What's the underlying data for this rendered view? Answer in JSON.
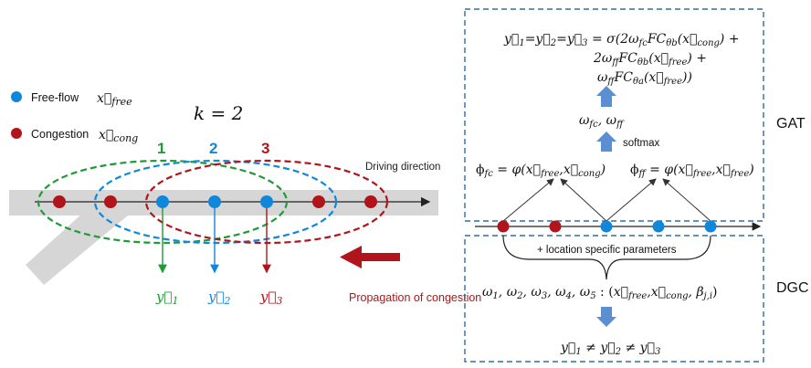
{
  "legend": {
    "free_flow_label": "Free-flow",
    "free_flow_symbol": "x⃗free",
    "congestion_label": "Congestion",
    "congestion_symbol": "x⃗cong",
    "free_color": "#1187db",
    "cong_color": "#b2141b"
  },
  "k_label": "k = 2",
  "hop_labels": [
    "1",
    "2",
    "3"
  ],
  "hop_colors": [
    "#1e9a36",
    "#1187db",
    "#b2141b"
  ],
  "driving_direction": "Driving direction",
  "outputs": [
    "y⃗₁",
    "y⃗₂",
    "y⃗₃"
  ],
  "propagation_label": "Propagation of congestion",
  "gat": {
    "label": "GAT",
    "formula_line1": "y⃗₁=y⃗₂=y⃗₃ = σ(2ωfcFCθb(x⃗cong) +",
    "formula_line2": "2ωffFCθb(x⃗free) +",
    "formula_line3": "ωffFCθa(x⃗free))",
    "weights": "ωfc, ωff",
    "softmax": "softmax",
    "phi_fc": "ϕfc = φ(x⃗free, x⃗cong)",
    "phi_ff": "ϕff = φ(x⃗free, x⃗free)"
  },
  "dgc": {
    "label": "DGC",
    "brace_text": "+ location specific parameters",
    "weights_formula": "ω1, ω2, ω3, ω4, ω5 : (x⃗free, x⃗cong, βj,i)",
    "result": "y⃗₁ ≠ y⃗₂ ≠ y⃗₃"
  }
}
